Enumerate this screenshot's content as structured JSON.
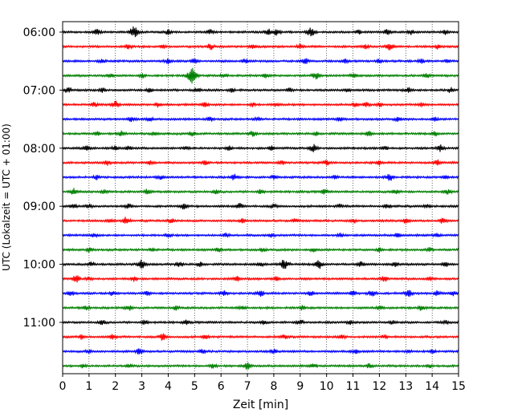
{
  "chart_data": {
    "type": "line",
    "title": "",
    "xlabel": "Zeit  [min]",
    "ylabel": "UTC (Lokalzeit = UTC + 01:00)",
    "xlim": [
      0,
      15
    ],
    "x_ticks": [
      "0",
      "1",
      "2",
      "3",
      "4",
      "5",
      "6",
      "7",
      "8",
      "9",
      "10",
      "11",
      "12",
      "13",
      "14",
      "15"
    ],
    "y_ticks": [
      "06:00",
      "07:00",
      "08:00",
      "09:00",
      "10:00",
      "11:00"
    ],
    "grid": "vertical dotted lines at each minute",
    "legend": "none",
    "trace_colors": [
      "#000000",
      "#ff0000",
      "#0000ff",
      "#008000"
    ],
    "traces": [
      {
        "start": "06:00",
        "events": [
          [
            1.3,
            0.35
          ],
          [
            2.7,
            0.7
          ],
          [
            4.0,
            0.3
          ],
          [
            5.6,
            0.35
          ],
          [
            7.8,
            0.35
          ],
          [
            8.1,
            0.4
          ],
          [
            9.4,
            0.6
          ],
          [
            11.2,
            0.25
          ],
          [
            12.3,
            0.35
          ],
          [
            13.2,
            0.3
          ],
          [
            14.5,
            0.3
          ]
        ]
      },
      {
        "start": "06:15",
        "events": [
          [
            2.5,
            0.3
          ],
          [
            3.8,
            0.25
          ],
          [
            5.6,
            0.4
          ],
          [
            7.2,
            0.3
          ],
          [
            9.0,
            0.3
          ],
          [
            11.5,
            0.25
          ],
          [
            12.4,
            0.45
          ],
          [
            14.2,
            0.25
          ]
        ]
      },
      {
        "start": "06:30",
        "events": [
          [
            1.5,
            0.25
          ],
          [
            4.0,
            0.3
          ],
          [
            5.0,
            0.3
          ],
          [
            6.9,
            0.3
          ],
          [
            9.2,
            0.35
          ],
          [
            10.7,
            0.25
          ],
          [
            12.0,
            0.25
          ],
          [
            13.6,
            0.25
          ],
          [
            14.6,
            0.2
          ]
        ]
      },
      {
        "start": "06:45",
        "events": [
          [
            1.8,
            0.3
          ],
          [
            3.0,
            0.3
          ],
          [
            4.9,
            1.0
          ],
          [
            6.1,
            0.3
          ],
          [
            7.7,
            0.35
          ],
          [
            9.6,
            0.5
          ],
          [
            11.0,
            0.3
          ],
          [
            13.8,
            0.25
          ]
        ]
      },
      {
        "start": "07:00",
        "events": [
          [
            0.2,
            0.35
          ],
          [
            1.5,
            0.3
          ],
          [
            3.3,
            0.3
          ],
          [
            5.1,
            0.3
          ],
          [
            6.4,
            0.25
          ],
          [
            8.6,
            0.25
          ],
          [
            10.8,
            0.25
          ],
          [
            13.1,
            0.3
          ],
          [
            14.7,
            0.3
          ]
        ]
      },
      {
        "start": "07:15",
        "events": [
          [
            1.2,
            0.3
          ],
          [
            2.0,
            0.45
          ],
          [
            3.6,
            0.3
          ],
          [
            5.4,
            0.3
          ],
          [
            7.2,
            0.25
          ],
          [
            8.1,
            0.25
          ],
          [
            11.1,
            0.3
          ],
          [
            11.5,
            0.3
          ],
          [
            12.0,
            0.25
          ],
          [
            13.6,
            0.25
          ]
        ]
      },
      {
        "start": "07:30",
        "events": [
          [
            2.6,
            0.3
          ],
          [
            3.3,
            0.25
          ],
          [
            5.6,
            0.25
          ],
          [
            7.4,
            0.25
          ],
          [
            10.5,
            0.25
          ],
          [
            12.7,
            0.25
          ],
          [
            14.1,
            0.25
          ]
        ]
      },
      {
        "start": "07:45",
        "events": [
          [
            1.3,
            0.25
          ],
          [
            2.2,
            0.3
          ],
          [
            3.5,
            0.25
          ],
          [
            4.9,
            0.3
          ],
          [
            7.2,
            0.35
          ],
          [
            9.6,
            0.25
          ],
          [
            11.6,
            0.3
          ],
          [
            14.1,
            0.3
          ]
        ]
      },
      {
        "start": "08:00",
        "events": [
          [
            0.9,
            0.3
          ],
          [
            2.0,
            0.3
          ],
          [
            2.5,
            0.25
          ],
          [
            4.7,
            0.25
          ],
          [
            6.3,
            0.25
          ],
          [
            7.9,
            0.25
          ],
          [
            9.5,
            0.45
          ],
          [
            12.2,
            0.25
          ],
          [
            14.3,
            0.4
          ]
        ]
      },
      {
        "start": "08:15",
        "events": [
          [
            1.7,
            0.3
          ],
          [
            3.3,
            0.25
          ],
          [
            5.4,
            0.25
          ],
          [
            8.3,
            0.25
          ],
          [
            10.0,
            0.35
          ],
          [
            12.0,
            0.25
          ],
          [
            14.2,
            0.4
          ]
        ]
      },
      {
        "start": "08:30",
        "events": [
          [
            1.3,
            0.3
          ],
          [
            3.7,
            0.25
          ],
          [
            6.5,
            0.35
          ],
          [
            8.0,
            0.25
          ],
          [
            10.3,
            0.25
          ],
          [
            12.4,
            0.45
          ],
          [
            14.5,
            0.25
          ]
        ]
      },
      {
        "start": "08:45",
        "events": [
          [
            0.4,
            0.45
          ],
          [
            1.6,
            0.25
          ],
          [
            3.2,
            0.3
          ],
          [
            5.8,
            0.25
          ],
          [
            7.5,
            0.25
          ],
          [
            9.9,
            0.3
          ],
          [
            12.6,
            0.35
          ],
          [
            14.6,
            0.3
          ]
        ]
      },
      {
        "start": "09:00",
        "events": [
          [
            0.4,
            0.3
          ],
          [
            1.0,
            0.25
          ],
          [
            2.5,
            0.3
          ],
          [
            4.6,
            0.35
          ],
          [
            6.7,
            0.35
          ],
          [
            8.0,
            0.25
          ],
          [
            10.5,
            0.25
          ],
          [
            12.3,
            0.3
          ],
          [
            13.8,
            0.25
          ]
        ]
      },
      {
        "start": "09:15",
        "events": [
          [
            1.8,
            0.3
          ],
          [
            2.4,
            0.45
          ],
          [
            4.1,
            0.35
          ],
          [
            6.8,
            0.25
          ],
          [
            8.8,
            0.25
          ],
          [
            11.0,
            0.25
          ],
          [
            13.0,
            0.3
          ],
          [
            14.4,
            0.35
          ]
        ]
      },
      {
        "start": "09:30",
        "events": [
          [
            1.2,
            0.25
          ],
          [
            4.0,
            0.25
          ],
          [
            6.2,
            0.25
          ],
          [
            7.9,
            0.25
          ],
          [
            10.5,
            0.25
          ],
          [
            12.7,
            0.3
          ],
          [
            14.2,
            0.25
          ]
        ]
      },
      {
        "start": "09:45",
        "events": [
          [
            1.0,
            0.25
          ],
          [
            3.4,
            0.25
          ],
          [
            5.9,
            0.25
          ],
          [
            7.6,
            0.25
          ],
          [
            9.5,
            0.25
          ],
          [
            12.0,
            0.25
          ],
          [
            13.9,
            0.25
          ]
        ]
      },
      {
        "start": "10:00",
        "events": [
          [
            1.1,
            0.3
          ],
          [
            3.0,
            0.6
          ],
          [
            4.4,
            0.35
          ],
          [
            5.2,
            0.3
          ],
          [
            7.5,
            0.3
          ],
          [
            8.4,
            0.7
          ],
          [
            9.7,
            0.6
          ],
          [
            11.3,
            0.3
          ],
          [
            12.6,
            0.3
          ],
          [
            14.5,
            0.3
          ]
        ]
      },
      {
        "start": "10:15",
        "events": [
          [
            0.5,
            0.55
          ],
          [
            1.0,
            0.25
          ],
          [
            2.7,
            0.35
          ],
          [
            6.6,
            0.3
          ],
          [
            8.1,
            0.3
          ],
          [
            12.2,
            0.35
          ],
          [
            13.9,
            0.25
          ]
        ]
      },
      {
        "start": "10:30",
        "events": [
          [
            0.3,
            0.35
          ],
          [
            1.9,
            0.3
          ],
          [
            3.2,
            0.25
          ],
          [
            6.1,
            0.4
          ],
          [
            7.5,
            0.35
          ],
          [
            9.4,
            0.3
          ],
          [
            11.0,
            0.3
          ],
          [
            11.7,
            0.45
          ],
          [
            13.1,
            0.45
          ],
          [
            14.2,
            0.3
          ],
          [
            14.8,
            0.3
          ]
        ]
      },
      {
        "start": "10:45",
        "events": [
          [
            0.9,
            0.25
          ],
          [
            2.5,
            0.35
          ],
          [
            4.3,
            0.25
          ],
          [
            6.8,
            0.25
          ],
          [
            9.1,
            0.25
          ],
          [
            12.0,
            0.25
          ],
          [
            13.6,
            0.35
          ]
        ]
      },
      {
        "start": "11:00",
        "events": [
          [
            1.5,
            0.3
          ],
          [
            3.1,
            0.25
          ],
          [
            4.7,
            0.25
          ],
          [
            7.6,
            0.25
          ],
          [
            9.0,
            0.35
          ],
          [
            10.9,
            0.25
          ],
          [
            12.5,
            0.25
          ],
          [
            14.5,
            0.25
          ]
        ]
      },
      {
        "start": "11:15",
        "events": [
          [
            0.7,
            0.25
          ],
          [
            1.9,
            0.3
          ],
          [
            3.8,
            0.45
          ],
          [
            5.4,
            0.25
          ],
          [
            8.4,
            0.25
          ],
          [
            10.6,
            0.25
          ],
          [
            12.2,
            0.25
          ]
        ]
      },
      {
        "start": "11:30",
        "events": [
          [
            1.0,
            0.25
          ],
          [
            2.9,
            0.4
          ],
          [
            5.3,
            0.25
          ],
          [
            8.0,
            0.25
          ],
          [
            11.1,
            0.25
          ],
          [
            13.1,
            0.25
          ],
          [
            14.0,
            0.25
          ]
        ]
      },
      {
        "start": "11:45",
        "events": [
          [
            0.8,
            0.25
          ],
          [
            2.5,
            0.25
          ],
          [
            5.7,
            0.3
          ],
          [
            7.0,
            0.45
          ],
          [
            9.5,
            0.25
          ],
          [
            11.6,
            0.25
          ],
          [
            13.9,
            0.25
          ]
        ]
      }
    ]
  }
}
